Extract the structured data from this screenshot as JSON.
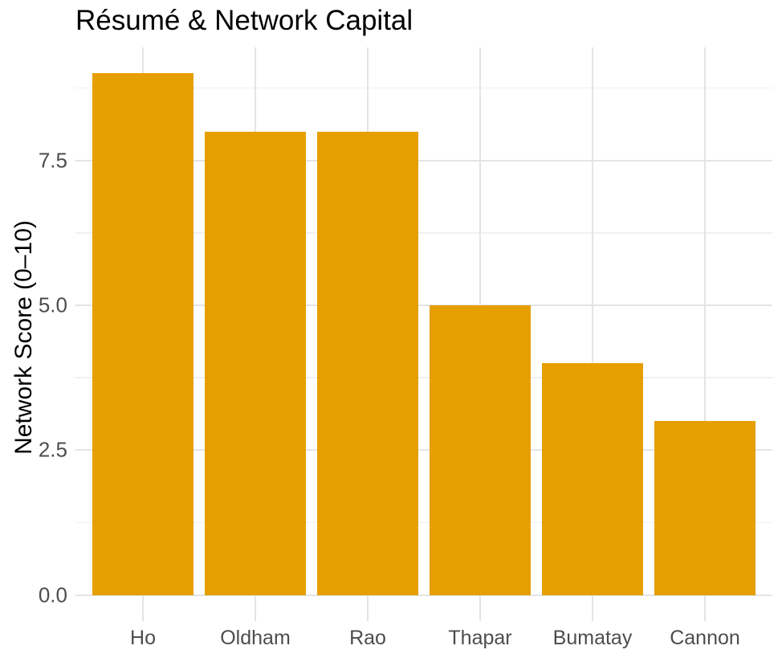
{
  "chart_data": {
    "type": "bar",
    "title": "Résumé & Network Capital",
    "xlabel": "",
    "ylabel": "Network Score (0–10)",
    "categories": [
      "Ho",
      "Oldham",
      "Rao",
      "Thapar",
      "Bumatay",
      "Cannon"
    ],
    "values": [
      9,
      8,
      8,
      5,
      4,
      3
    ],
    "ylim": [
      0,
      9
    ],
    "y_major_ticks": [
      0,
      2.5,
      5,
      7.5
    ],
    "y_tick_labels": [
      "0.0",
      "2.5",
      "5.0",
      "7.5"
    ],
    "y_minor_ticks": [
      1.25,
      3.75,
      6.25,
      8.75
    ],
    "grid": "major and minor horizontal, major vertical at category centers",
    "legend_position": "none"
  },
  "colors": {
    "bar_fill": "#E69F00",
    "grid_major": "#E4E4E4",
    "grid_minor": "#F0F0F0",
    "tick_text": "#4D4D4D",
    "title_text": "#000000",
    "background": "#FFFFFF"
  }
}
